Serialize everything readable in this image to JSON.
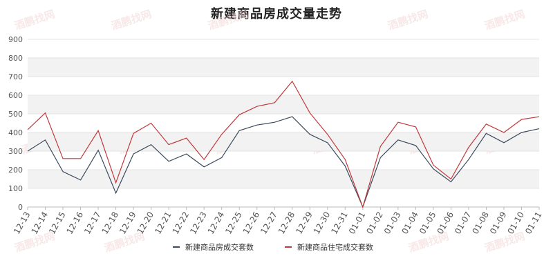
{
  "watermark": "酒鹏找网",
  "chart_data": {
    "type": "line",
    "title": "新建商品房成交量走势",
    "xlabel": "",
    "ylabel": "",
    "ylim": [
      0,
      900
    ],
    "yticks": [
      0,
      100,
      200,
      300,
      400,
      500,
      600,
      700,
      800,
      900
    ],
    "grid": true,
    "legend": "bottom",
    "categories": [
      "12-13",
      "12-14",
      "12-15",
      "12-16",
      "12-17",
      "12-18",
      "12-19",
      "12-20",
      "12-21",
      "12-22",
      "12-23",
      "12-24",
      "12-25",
      "12-26",
      "12-27",
      "12-28",
      "12-29",
      "12-30",
      "12-31",
      "01-01",
      "01-02",
      "01-03",
      "01-04",
      "01-05",
      "01-06",
      "01-07",
      "01-08",
      "01-09",
      "01-10",
      "01-11"
    ],
    "series": [
      {
        "name": "新建商品房成交套数",
        "color": "#3b4a5c",
        "values": [
          300,
          360,
          190,
          145,
          305,
          75,
          285,
          335,
          245,
          285,
          215,
          265,
          410,
          440,
          455,
          485,
          390,
          345,
          220,
          0,
          265,
          360,
          330,
          205,
          135,
          255,
          395,
          345,
          400,
          420
        ]
      },
      {
        "name": "新建商品住宅成交套数",
        "color": "#c0393b",
        "values": [
          415,
          505,
          260,
          260,
          410,
          130,
          395,
          450,
          335,
          370,
          255,
          390,
          495,
          540,
          560,
          675,
          505,
          390,
          255,
          0,
          325,
          455,
          430,
          225,
          150,
          320,
          445,
          400,
          470,
          485
        ]
      }
    ]
  }
}
